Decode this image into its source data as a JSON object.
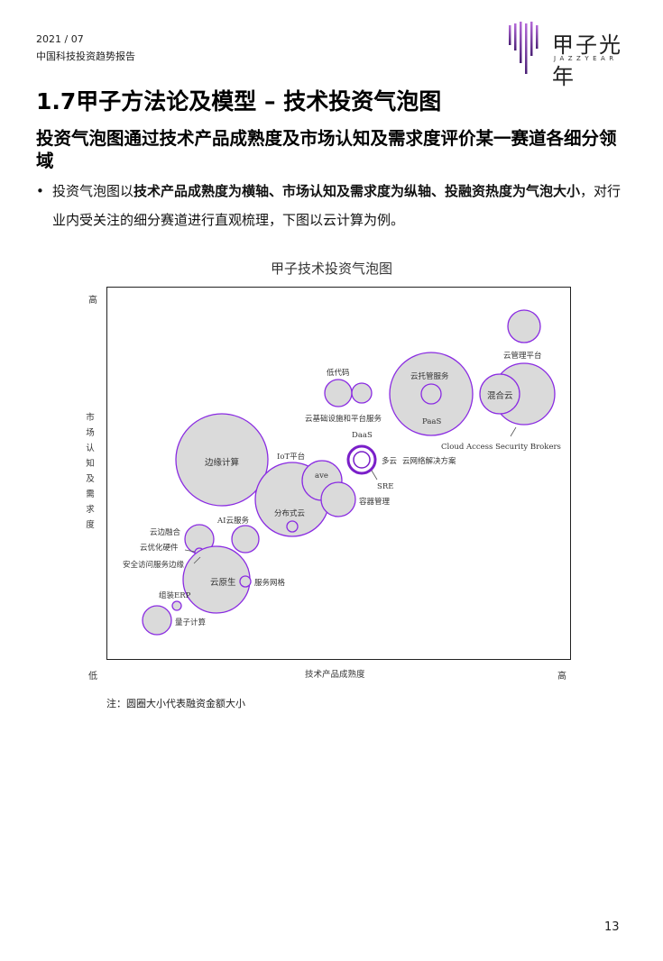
{
  "header": {
    "date": "2021 / 07",
    "report_name": "中国科技投资趋势报告"
  },
  "logo": {
    "name_cn": "甲子光年",
    "name_en": "JAZZYEAR",
    "bar_colors": [
      "#5b2a86",
      "#7b3fb0",
      "#9b59d0"
    ]
  },
  "page": {
    "title": "1.7甲子方法论及模型 – 技术投资气泡图",
    "subtitle": "投资气泡图通过技术产品成熟度及市场认知及需求度评价某一赛道各细分领域",
    "bullet_symbol": "•",
    "bullet_plain_1": "投资气泡图以",
    "bullet_bold_1": "技术产品成熟度为横轴、市场认知及需求度为纵轴、投融资热度为气泡大小",
    "bullet_plain_2": "，对行业内受关注的细分赛道进行直观梳理，下图以云计算为例。",
    "page_number": "13"
  },
  "chart_data": {
    "type": "bubble",
    "title": "甲子技术投资气泡图",
    "xlabel": "技术产品成熟度",
    "ylabel": "市场认知及需求度",
    "x_low": "低",
    "x_high": "高",
    "y_high": "高",
    "note": "注：圆圈大小代表融资金额大小",
    "bubble_fill": "#dadada",
    "bubble_stroke": "#8a2be2",
    "highlight_stroke": "#7a1fc9",
    "labels": {
      "gui_pt": "云管理平台",
      "hunhe": "混合云",
      "casb": "Cloud Access Security Brokers",
      "tuoguan": "云托管服务",
      "paas": "PaaS",
      "didaima": "低代码",
      "jichu": "云基础设施和平台服务",
      "daas": "DaaS",
      "duoyun": "多云",
      "wangluo": "云网络解决方案",
      "sre": "SRE",
      "rongqi": "容器管理",
      "bianyuan": "边缘计算",
      "iot": "IoT平台",
      "ave": "ave",
      "fenbu": "分布式云",
      "ai": "AI云服务",
      "yunbian": "云边融合",
      "youhua": "云优化硬件",
      "anquan": "安全访问服务边缘",
      "yuansheng": "云原生",
      "fuwu": "服务网格",
      "erp": "组装ERP",
      "liangzi": "量子计算"
    }
  }
}
